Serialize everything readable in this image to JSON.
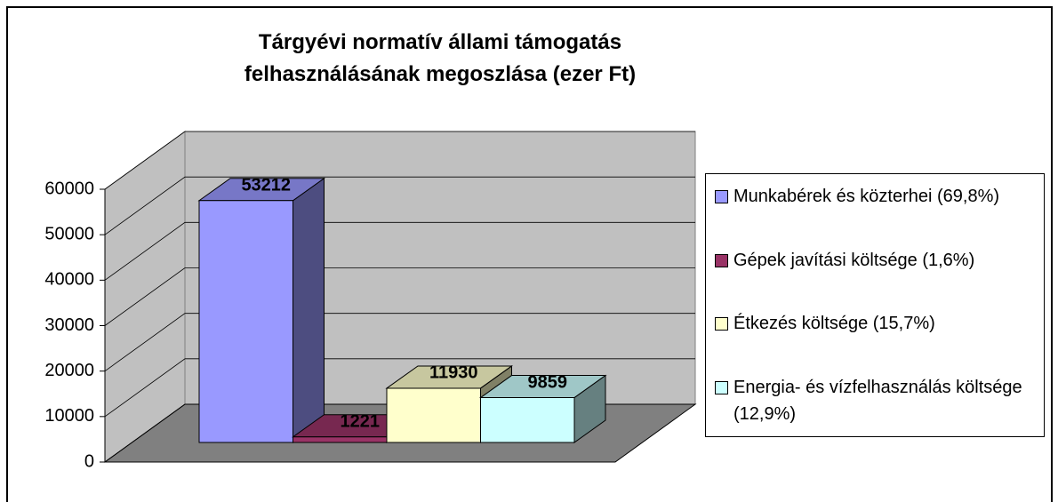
{
  "chart_data": {
    "type": "bar3d",
    "title": "Tárgyévi normatív állami támogatás felhasználásának megoszlása (ezer Ft)",
    "series": [
      {
        "name": "Munkabérek és közterhei (69,8%)",
        "color": "#9999ff",
        "values": [
          53212
        ]
      },
      {
        "name": "Gépek javítási költsége (1,6%)",
        "color": "#993366",
        "values": [
          1221
        ]
      },
      {
        "name": "Étkezés költsége (15,7%)",
        "color": "#ffffcc",
        "values": [
          11930
        ]
      },
      {
        "name": "Energia- és vízfelhasználás költsége (12,9%)",
        "color": "#ccffff",
        "values": [
          9859
        ]
      }
    ],
    "ylim": [
      0,
      60000
    ],
    "yticks": [
      0,
      10000,
      20000,
      30000,
      40000,
      50000,
      60000
    ],
    "grid": true,
    "legend": "right"
  }
}
